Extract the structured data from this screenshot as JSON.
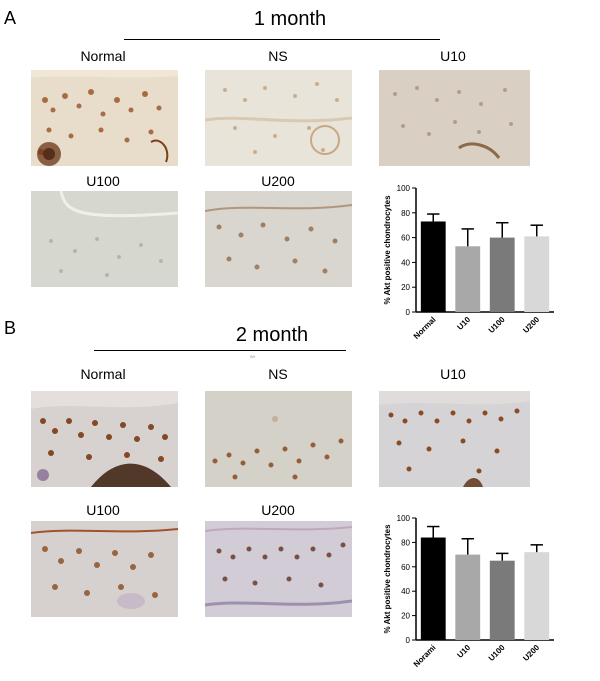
{
  "panel_a": {
    "letter": "A",
    "title": "1 month",
    "labels": [
      "Normal",
      "NS",
      "U10",
      "U100",
      "U200"
    ]
  },
  "panel_b": {
    "letter": "B",
    "title": "2 month",
    "tiny_mark": "Wr",
    "labels": [
      "Normal",
      "NS",
      "U10",
      "U100",
      "U200"
    ]
  },
  "colors": {
    "bar_black": "#000000",
    "bar_lightgray": "#a8a8a8",
    "bar_darkgray": "#7a7a7a",
    "bar_verylight": "#d8d8d8",
    "stain_brown": "#8a4a1e",
    "tissue_bg_a": "#e7dccd",
    "tissue_bg_b": "#d9d5da"
  },
  "chart_data": [
    {
      "type": "bar",
      "ylabel": "% Akt positive chondrocytes",
      "ylim": [
        0,
        100
      ],
      "yticks": [
        0,
        20,
        40,
        60,
        80,
        100
      ],
      "categories": [
        "Normal",
        "U10",
        "U100",
        "U200"
      ],
      "values": [
        73,
        53,
        60,
        61
      ],
      "errors": [
        6,
        14,
        12,
        9
      ],
      "bar_colors": [
        "#000000",
        "#a8a8a8",
        "#7a7a7a",
        "#d8d8d8"
      ]
    },
    {
      "type": "bar",
      "ylabel": "% Akt positive chondrocytes",
      "ylim": [
        0,
        100
      ],
      "yticks": [
        0,
        20,
        40,
        60,
        80,
        100
      ],
      "categories": [
        "Norami",
        "U10",
        "U100",
        "U200"
      ],
      "values": [
        84,
        70,
        65,
        72
      ],
      "errors": [
        9,
        13,
        6,
        6
      ],
      "bar_colors": [
        "#000000",
        "#a8a8a8",
        "#7a7a7a",
        "#d8d8d8"
      ]
    }
  ]
}
